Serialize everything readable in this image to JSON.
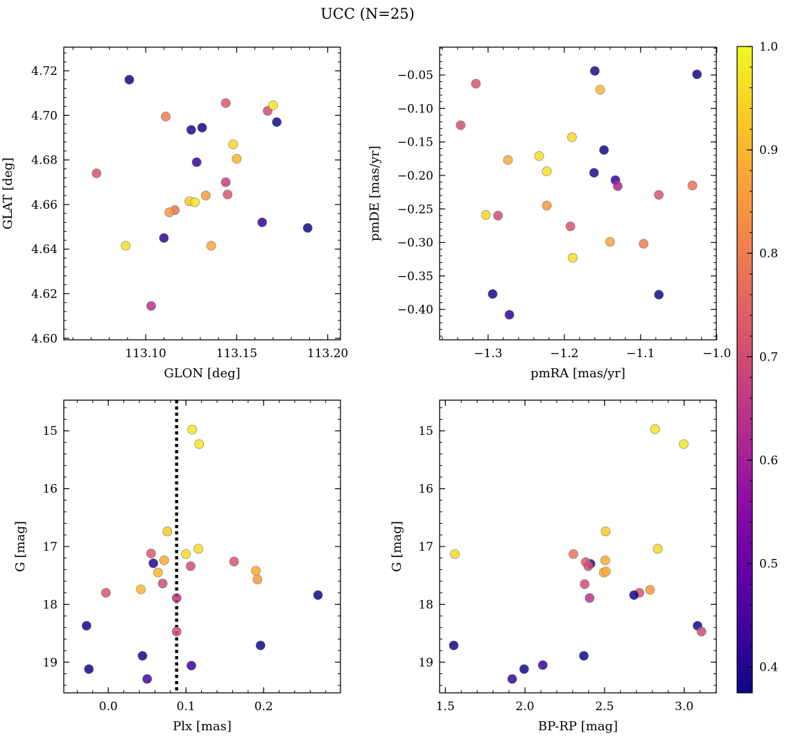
{
  "figure": {
    "title": "UCC (N=25)"
  },
  "colorbar": {
    "vmin": 0.375,
    "vmax": 1.0,
    "ticks": [
      0.4,
      0.5,
      0.6,
      0.7,
      0.8,
      0.9,
      1.0
    ],
    "tick_labels": [
      "0.4",
      "0.5",
      "0.6",
      "0.7",
      "0.8",
      "0.9",
      "1.0"
    ],
    "colormap": "plasma"
  },
  "chart_data": [
    {
      "type": "scatter",
      "name": "glon-glat",
      "xlabel": "GLON [deg]",
      "ylabel": "GLAT [deg]",
      "xlim": [
        113.055,
        113.207
      ],
      "ylim": [
        4.5993,
        4.7306
      ],
      "x_ticks": [
        113.1,
        113.15,
        113.2
      ],
      "x_tick_labels": [
        "113.10",
        "113.15",
        "113.20"
      ],
      "y_ticks": [
        4.6,
        4.62,
        4.64,
        4.66,
        4.68,
        4.7,
        4.72
      ],
      "y_tick_labels": [
        "4.60",
        "4.62",
        "4.64",
        "4.66",
        "4.68",
        "4.70",
        "4.72"
      ],
      "x": [
        113.091,
        113.111,
        113.125,
        113.131,
        113.144,
        113.167,
        113.17,
        113.172,
        113.073,
        113.148,
        113.15,
        113.128,
        113.144,
        113.124,
        113.116,
        113.127,
        113.113,
        113.145,
        113.133,
        113.164,
        113.089,
        113.11,
        113.136,
        113.189,
        113.103
      ],
      "y": [
        4.716,
        4.6995,
        4.6935,
        4.6945,
        4.7055,
        4.702,
        4.7045,
        4.697,
        4.674,
        4.687,
        4.6805,
        4.679,
        4.67,
        4.6615,
        4.6575,
        4.661,
        4.6565,
        4.6645,
        4.664,
        4.652,
        4.6415,
        4.645,
        4.6415,
        4.6495,
        4.6145
      ],
      "prob": [
        0.38,
        0.8,
        0.4,
        0.39,
        0.73,
        0.7,
        0.97,
        0.38,
        0.72,
        0.95,
        0.9,
        0.43,
        0.67,
        0.93,
        0.78,
        0.97,
        0.85,
        0.72,
        0.85,
        0.42,
        0.96,
        0.42,
        0.87,
        0.38,
        0.64
      ]
    },
    {
      "type": "scatter",
      "name": "pmra-pmde",
      "xlabel": "pmRA [mas/yr]",
      "ylabel": "pmDE [mas/yr]",
      "xlim": [
        -1.3636,
        -1.0007
      ],
      "ylim": [
        -0.4454,
        -0.0085
      ],
      "x_ticks": [
        -1.3,
        -1.2,
        -1.1,
        -1.0
      ],
      "x_tick_labels": [
        "−1.3",
        "−1.2",
        "−1.1",
        "−1.0"
      ],
      "y_ticks": [
        -0.05,
        -0.1,
        -0.15,
        -0.2,
        -0.25,
        -0.3,
        -0.35,
        -0.4
      ],
      "y_tick_labels": [
        "−0.05",
        "−0.10",
        "−0.15",
        "−0.20",
        "−0.25",
        "−0.30",
        "−0.35",
        "−0.40"
      ],
      "x": [
        -1.16,
        -1.026,
        -1.316,
        -1.153,
        -1.336,
        -1.19,
        -1.148,
        -1.274,
        -1.233,
        -1.223,
        -1.161,
        -1.133,
        -1.13,
        -1.076,
        -1.032,
        -1.223,
        -1.303,
        -1.287,
        -1.192,
        -1.14,
        -1.096,
        -1.189,
        -1.294,
        -1.076,
        -1.272
      ],
      "y": [
        -0.044,
        -0.049,
        -0.063,
        -0.072,
        -0.125,
        -0.143,
        -0.162,
        -0.177,
        -0.171,
        -0.194,
        -0.196,
        -0.207,
        -0.216,
        -0.229,
        -0.215,
        -0.245,
        -0.259,
        -0.26,
        -0.276,
        -0.299,
        -0.302,
        -0.323,
        -0.377,
        -0.378,
        -0.408
      ],
      "prob": [
        0.4,
        0.38,
        0.72,
        0.9,
        0.71,
        0.95,
        0.38,
        0.88,
        0.96,
        0.97,
        0.4,
        0.43,
        0.62,
        0.72,
        0.78,
        0.85,
        0.95,
        0.7,
        0.72,
        0.87,
        0.8,
        0.96,
        0.38,
        0.38,
        0.42
      ]
    },
    {
      "type": "scatter",
      "name": "plx-g",
      "xlabel": "Plx [mas]",
      "ylabel": "G [mag]",
      "xlim": [
        -0.0573,
        0.2989
      ],
      "ylim": [
        19.53,
        14.47
      ],
      "y_inverted": true,
      "x_ticks": [
        0.0,
        0.1,
        0.2
      ],
      "x_tick_labels": [
        "0.0",
        "0.1",
        "0.2"
      ],
      "y_ticks": [
        15,
        16,
        17,
        18,
        19
      ],
      "y_tick_labels": [
        "15",
        "16",
        "17",
        "18",
        "19"
      ],
      "vline": 0.088,
      "x": [
        0.108,
        0.117,
        0.076,
        0.055,
        0.072,
        0.116,
        0.1,
        0.058,
        0.064,
        0.106,
        0.162,
        0.07,
        0.19,
        0.192,
        0.042,
        -0.003,
        0.27,
        0.088,
        -0.028,
        0.088,
        0.044,
        0.196,
        -0.025,
        0.107,
        0.05
      ],
      "y": [
        14.98,
        15.23,
        16.74,
        17.12,
        17.24,
        17.04,
        17.13,
        17.29,
        17.45,
        17.34,
        17.26,
        17.64,
        17.42,
        17.57,
        17.74,
        17.8,
        17.84,
        17.89,
        18.37,
        18.47,
        18.89,
        18.71,
        19.12,
        19.06,
        19.29
      ],
      "prob": [
        0.97,
        0.97,
        0.93,
        0.73,
        0.88,
        0.95,
        0.95,
        0.4,
        0.9,
        0.7,
        0.72,
        0.7,
        0.88,
        0.85,
        0.9,
        0.72,
        0.38,
        0.65,
        0.38,
        0.7,
        0.38,
        0.38,
        0.38,
        0.43,
        0.45
      ]
    },
    {
      "type": "scatter",
      "name": "bprp-g",
      "xlabel": "BP-RP [mag]",
      "ylabel": "G [mag]",
      "xlim": [
        1.464,
        3.2017
      ],
      "ylim": [
        19.53,
        14.47
      ],
      "y_inverted": true,
      "x_ticks": [
        1.5,
        2.0,
        2.5,
        3.0
      ],
      "x_tick_labels": [
        "1.5",
        "2.0",
        "2.5",
        "3.0"
      ],
      "y_ticks": [
        15,
        16,
        17,
        18,
        19
      ],
      "y_tick_labels": [
        "15",
        "16",
        "17",
        "18",
        "19"
      ],
      "x": [
        2.817,
        2.997,
        2.507,
        1.56,
        2.304,
        2.834,
        2.412,
        2.382,
        2.504,
        2.398,
        2.495,
        2.509,
        2.375,
        2.406,
        2.786,
        2.719,
        2.685,
        3.084,
        3.109,
        1.553,
        2.37,
        1.995,
        2.112,
        1.92
      ],
      "y": [
        14.97,
        15.23,
        16.74,
        17.13,
        17.13,
        17.04,
        17.3,
        17.27,
        17.24,
        17.34,
        17.45,
        17.43,
        17.65,
        17.89,
        17.75,
        17.8,
        17.84,
        18.37,
        18.47,
        18.71,
        18.89,
        19.12,
        19.05,
        19.29
      ],
      "prob": [
        0.97,
        0.97,
        0.93,
        0.95,
        0.78,
        0.95,
        0.4,
        0.72,
        0.88,
        0.7,
        0.9,
        0.88,
        0.7,
        0.65,
        0.85,
        0.72,
        0.38,
        0.38,
        0.7,
        0.38,
        0.38,
        0.38,
        0.43,
        0.42
      ]
    }
  ]
}
